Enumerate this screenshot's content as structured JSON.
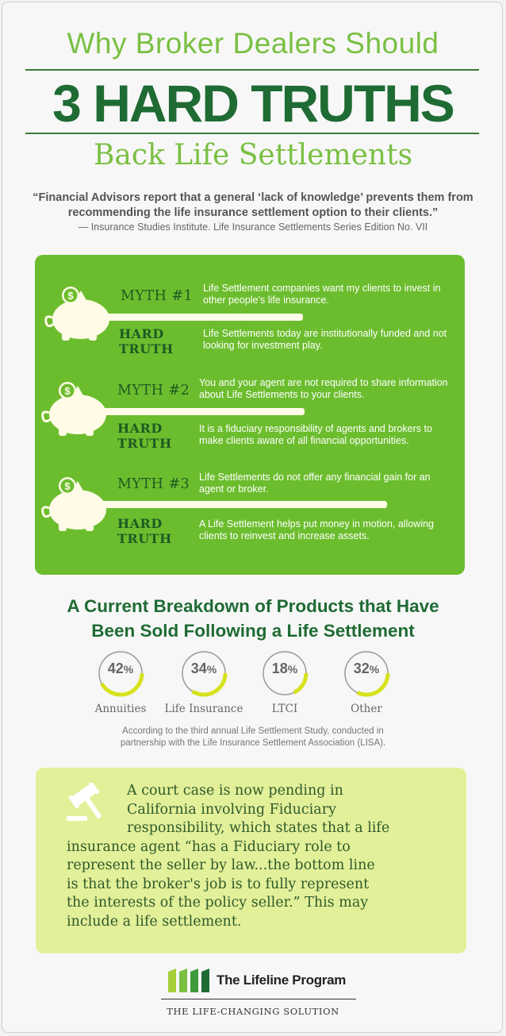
{
  "header": {
    "line1": "Why Broker Dealers Should",
    "line2": "3 HARD TRUTHS",
    "line3": "Back Life Settlements"
  },
  "quote": {
    "text": "“Financial Advisors report that a general ‘lack of knowledge’ prevents them from recommending the life insurance settlement option to their clients.”",
    "citation": "— Insurance Studies Institute.  Life Insurance Settlements Series Edition No. VII"
  },
  "myths": [
    {
      "label": "MYTH #1",
      "myth": "Life Settlement companies want my clients to invest in other people’s life insurance.",
      "truth_label_1": "HARD",
      "truth_label_2": "TRUTH",
      "truth": "Life Settlements today are institutionally funded and not looking for investment play."
    },
    {
      "label": "MYTH #2",
      "myth": "You and your agent are not required to share information about Life Settlements to your clients.",
      "truth_label_1": "HARD",
      "truth_label_2": "TRUTH",
      "truth": "It is a fiduciary responsibility of agents and brokers to make clients aware of all financial opportunities."
    },
    {
      "label": "MYTH #3",
      "myth": "Life Settlements do not offer any financial gain for an agent or broker.",
      "truth_label_1": "HARD",
      "truth_label_2": "TRUTH",
      "truth": "A Life Settlement helps put money in motion, allowing clients to reinvest and increase assets."
    }
  ],
  "breakdown": {
    "title_line1": "A Current Breakdown of Products that Have",
    "title_line2": "Been Sold Following a Life Settlement",
    "source": "According to the third annual Life Settlement Study, conducted in partnership with the Life Insurance Settlement Association (LISA).",
    "items": [
      {
        "value": "42",
        "unit": "%",
        "label": "Annuities",
        "fraction": 0.42
      },
      {
        "value": "34",
        "unit": "%",
        "label": "Life Insurance",
        "fraction": 0.34
      },
      {
        "value": "18",
        "unit": "%",
        "label": "LTCI",
        "fraction": 0.18
      },
      {
        "value": "32",
        "unit": "%",
        "label": "Other",
        "fraction": 0.32
      }
    ]
  },
  "court": {
    "lines": [
      "A court case is now pending in",
      "California involving Fiduciary",
      "responsibility, which states that a life",
      "insurance agent “has a Fiduciary role to",
      "represent the seller by law...the bottom line",
      "is that the broker's job is to fully represent",
      "the interests of the policy seller.” This may",
      "include a life settlement."
    ]
  },
  "footer": {
    "brand": "The Lifeline Program",
    "tagline": "THE LIFE-CHANGING SOLUTION"
  },
  "colors": {
    "light_green": "#7ac043",
    "dark_green": "#1f6b34",
    "box_green": "#6cbd2e",
    "court_bg": "#e3f09a",
    "ring_yellow": "#d7e21e"
  },
  "icons": [
    "piggy-bank-icon",
    "gavel-icon",
    "lifeline-logo-icon"
  ]
}
